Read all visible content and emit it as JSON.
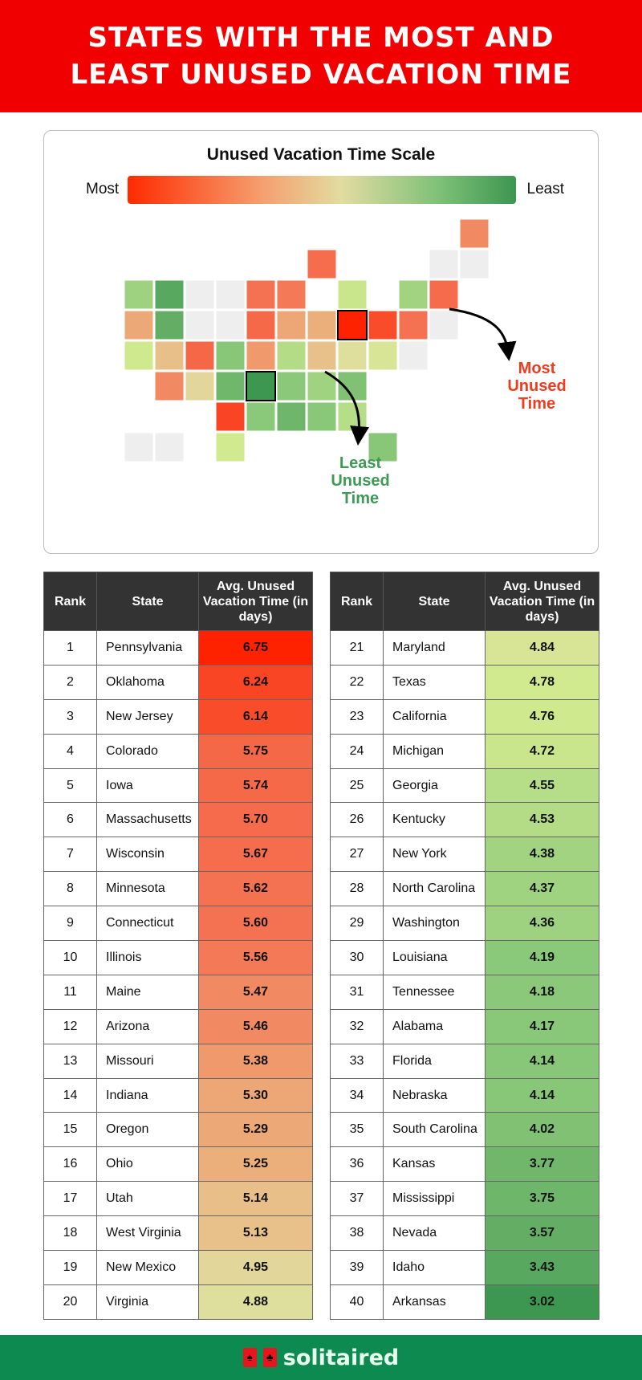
{
  "header": {
    "title": "STATES WITH THE MOST AND LEAST UNUSED VACATION TIME"
  },
  "legend": {
    "title": "Unused Vacation Time Scale",
    "most": "Most",
    "least": "Least",
    "color_stops": [
      [
        6.75,
        "#ff2200"
      ],
      [
        5.6,
        "#f47252"
      ],
      [
        5.2,
        "#eab882"
      ],
      [
        4.9,
        "#e0dca0"
      ],
      [
        4.8,
        "#d4eb90"
      ],
      [
        4.2,
        "#8cc97a"
      ],
      [
        3.0,
        "#3d9650"
      ]
    ],
    "no_data_color": "#eeeeee"
  },
  "annotations": {
    "most": "Most Unused Time",
    "least": "Least Unused Time",
    "most_color": "#f03c1e",
    "least_color": "#3e9a55"
  },
  "table": {
    "headers": {
      "rank": "Rank",
      "state": "State",
      "value": "Avg. Unused Vacation Time (in days)"
    },
    "rows": [
      {
        "rank": "1",
        "state": "Pennsylvania",
        "value": "6.75",
        "abbr": "PA"
      },
      {
        "rank": "2",
        "state": "Oklahoma",
        "value": "6.24",
        "abbr": "OK"
      },
      {
        "rank": "3",
        "state": "New Jersey",
        "value": "6.14",
        "abbr": "NJ"
      },
      {
        "rank": "4",
        "state": "Colorado",
        "value": "5.75",
        "abbr": "CO"
      },
      {
        "rank": "5",
        "state": "Iowa",
        "value": "5.74",
        "abbr": "IA"
      },
      {
        "rank": "6",
        "state": "Massachusetts",
        "value": "5.70",
        "abbr": "MA"
      },
      {
        "rank": "7",
        "state": "Wisconsin",
        "value": "5.67",
        "abbr": "WI"
      },
      {
        "rank": "8",
        "state": "Minnesota",
        "value": "5.62",
        "abbr": "MN"
      },
      {
        "rank": "9",
        "state": "Connecticut",
        "value": "5.60",
        "abbr": "CT"
      },
      {
        "rank": "10",
        "state": "Illinois",
        "value": "5.56",
        "abbr": "IL"
      },
      {
        "rank": "11",
        "state": "Maine",
        "value": "5.47",
        "abbr": "ME"
      },
      {
        "rank": "12",
        "state": "Arizona",
        "value": "5.46",
        "abbr": "AZ"
      },
      {
        "rank": "13",
        "state": "Missouri",
        "value": "5.38",
        "abbr": "MO"
      },
      {
        "rank": "14",
        "state": "Indiana",
        "value": "5.30",
        "abbr": "IN"
      },
      {
        "rank": "15",
        "state": "Oregon",
        "value": "5.29",
        "abbr": "OR"
      },
      {
        "rank": "16",
        "state": "Ohio",
        "value": "5.25",
        "abbr": "OH"
      },
      {
        "rank": "17",
        "state": "Utah",
        "value": "5.14",
        "abbr": "UT"
      },
      {
        "rank": "18",
        "state": "West Virginia",
        "value": "5.13",
        "abbr": "WV"
      },
      {
        "rank": "19",
        "state": "New Mexico",
        "value": "4.95",
        "abbr": "NM"
      },
      {
        "rank": "20",
        "state": "Virginia",
        "value": "4.88",
        "abbr": "VA"
      },
      {
        "rank": "21",
        "state": "Maryland",
        "value": "4.84",
        "abbr": "MD"
      },
      {
        "rank": "22",
        "state": "Texas",
        "value": "4.78",
        "abbr": "TX"
      },
      {
        "rank": "23",
        "state": "California",
        "value": "4.76",
        "abbr": "CA"
      },
      {
        "rank": "24",
        "state": "Michigan",
        "value": "4.72",
        "abbr": "MI"
      },
      {
        "rank": "25",
        "state": "Georgia",
        "value": "4.55",
        "abbr": "GA"
      },
      {
        "rank": "26",
        "state": "Kentucky",
        "value": "4.53",
        "abbr": "KY"
      },
      {
        "rank": "27",
        "state": "New York",
        "value": "4.38",
        "abbr": "NY"
      },
      {
        "rank": "28",
        "state": "North Carolina",
        "value": "4.37",
        "abbr": "NC"
      },
      {
        "rank": "29",
        "state": "Washington",
        "value": "4.36",
        "abbr": "WA"
      },
      {
        "rank": "30",
        "state": "Louisiana",
        "value": "4.19",
        "abbr": "LA"
      },
      {
        "rank": "31",
        "state": "Tennessee",
        "value": "4.18",
        "abbr": "TN"
      },
      {
        "rank": "32",
        "state": "Alabama",
        "value": "4.17",
        "abbr": "AL"
      },
      {
        "rank": "33",
        "state": "Florida",
        "value": "4.14",
        "abbr": "FL"
      },
      {
        "rank": "34",
        "state": "Nebraska",
        "value": "4.14",
        "abbr": "NE"
      },
      {
        "rank": "35",
        "state": "South Carolina",
        "value": "4.02",
        "abbr": "SC"
      },
      {
        "rank": "36",
        "state": "Kansas",
        "value": "3.77",
        "abbr": "KS"
      },
      {
        "rank": "37",
        "state": "Mississippi",
        "value": "3.75",
        "abbr": "MS"
      },
      {
        "rank": "38",
        "state": "Nevada",
        "value": "3.57",
        "abbr": "NV"
      },
      {
        "rank": "39",
        "state": "Idaho",
        "value": "3.43",
        "abbr": "ID"
      },
      {
        "rank": "40",
        "state": "Arkansas",
        "value": "3.02",
        "abbr": "AR"
      }
    ]
  },
  "footer": {
    "brand": "solitaired"
  }
}
